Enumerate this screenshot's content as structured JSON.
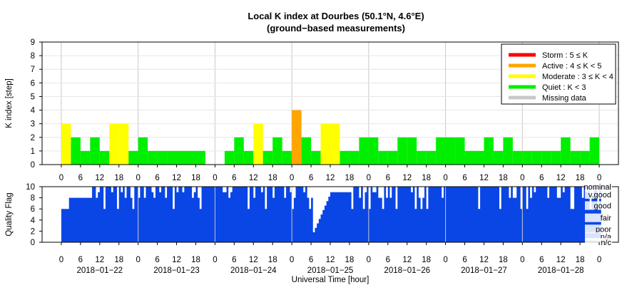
{
  "chart_data": [
    {
      "type": "bar",
      "title": "Local K index at Dourbes (50.1°N, 4.6°E)",
      "subtitle": "(ground−based measurements)",
      "ylabel": "K index [step]",
      "ylim": [
        0,
        9
      ],
      "yticks": [
        "0",
        "1",
        "2",
        "3",
        "4",
        "5",
        "6",
        "7",
        "8",
        "9"
      ],
      "xlim_hours": [
        -6,
        174
      ],
      "bar_hours": 3,
      "grid": true,
      "legend_position": "top-right",
      "legend": [
        {
          "label": "Storm : 5 ≤ K",
          "color": "#ff0000"
        },
        {
          "label": "Active : 4 ≤ K < 5",
          "color": "#ffa500"
        },
        {
          "label": "Moderate : 3 ≤ K < 4",
          "color": "#ffff00"
        },
        {
          "label": "Quiet : K < 3",
          "color": "#00ee00"
        },
        {
          "label": "Missing data",
          "color": "#c8c8c8"
        }
      ],
      "k_values": [
        3,
        2,
        1,
        2,
        1,
        3,
        3,
        1,
        2,
        1,
        1,
        1,
        1,
        1,
        1,
        0,
        0,
        1,
        2,
        1,
        3,
        1,
        2,
        1,
        4,
        2,
        1,
        3,
        3,
        1,
        1,
        2,
        2,
        1,
        1,
        2,
        2,
        1,
        1,
        2,
        2,
        2,
        1,
        1,
        2,
        1,
        2,
        1,
        1,
        1,
        1,
        1,
        2,
        1,
        1,
        2
      ]
    },
    {
      "type": "area",
      "ylabel": "Quality Flag",
      "ylim": [
        0,
        10
      ],
      "yticks": [
        "0",
        "2",
        "4",
        "6",
        "8",
        "10"
      ],
      "color": "#0a46e6",
      "quality_levels": [
        "nominal",
        "v.good",
        "good",
        "fair",
        "poor",
        "n/a",
        "n/c"
      ],
      "x_tick_hours": [
        "0",
        "6",
        "12",
        "18",
        "0",
        "6",
        "12",
        "18",
        "0",
        "6",
        "12",
        "18",
        "0",
        "6",
        "12",
        "18",
        "0",
        "6",
        "12",
        "18",
        "0",
        "6",
        "12",
        "18",
        "0",
        "6",
        "12",
        "18",
        "0"
      ],
      "dates": [
        "2018−01−22",
        "2018−01−23",
        "2018−01−24",
        "2018−01−25",
        "2018−01−26",
        "2018−01−27",
        "2018−01−28"
      ],
      "xlabel": "Universal Time [hour]"
    }
  ]
}
